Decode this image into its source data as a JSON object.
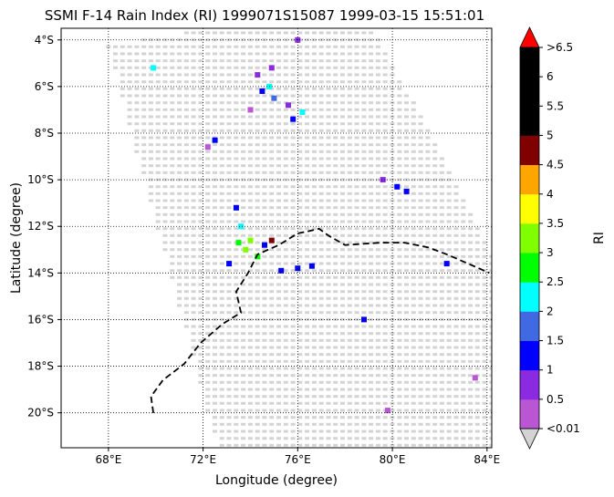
{
  "chart_data": {
    "type": "heatmap",
    "title": "SSMI F-14 Rain Index (RI) 1999071S15087 1999-03-15 15:51:01",
    "xlabel": "Longitude (degree)",
    "ylabel": "Latitude (degree)",
    "xlim": [
      66,
      84.2
    ],
    "ylim": [
      -21.5,
      -3.5
    ],
    "grid": true,
    "x_ticks": [
      {
        "value": 68,
        "label": "68°E"
      },
      {
        "value": 72,
        "label": "72°E"
      },
      {
        "value": 76,
        "label": "76°E"
      },
      {
        "value": 80,
        "label": "80°E"
      },
      {
        "value": 84,
        "label": "84°E"
      }
    ],
    "y_ticks": [
      {
        "value": -4,
        "label": "4°S"
      },
      {
        "value": -6,
        "label": "6°S"
      },
      {
        "value": -8,
        "label": "8°S"
      },
      {
        "value": -10,
        "label": "10°S"
      },
      {
        "value": -12,
        "label": "12°S"
      },
      {
        "value": -14,
        "label": "14°S"
      },
      {
        "value": -16,
        "label": "16°S"
      },
      {
        "value": -18,
        "label": "18°S"
      },
      {
        "value": -20,
        "label": "20°S"
      }
    ],
    "colorbar": {
      "label": "RI",
      "tick_labels": [
        "<0.01",
        "0.5",
        "1",
        "1.5",
        "2",
        "2.5",
        "3",
        "3.5",
        "4",
        "4.5",
        "5",
        "5.5",
        "6",
        ">6.5"
      ],
      "colors": [
        "#ba55d3",
        "#8a2be2",
        "#0000ff",
        "#4169e1",
        "#00ffff",
        "#00ff00",
        "#7fff00",
        "#ffff00",
        "#ffa500",
        "#800000",
        "#000000",
        "#000000",
        "#000000"
      ],
      "under_color": "#d3d3d3",
      "over_color": "#ff0000"
    },
    "coastline": [
      [
        69.9,
        -20.0
      ],
      [
        69.8,
        -19.3
      ],
      [
        70.3,
        -18.6
      ],
      [
        71.2,
        -17.9
      ],
      [
        71.9,
        -17.0
      ],
      [
        72.8,
        -16.2
      ],
      [
        73.6,
        -15.7
      ],
      [
        73.4,
        -14.8
      ],
      [
        73.9,
        -14.0
      ],
      [
        74.3,
        -13.2
      ],
      [
        75.2,
        -12.8
      ],
      [
        76.0,
        -12.3
      ],
      [
        76.5,
        -12.2
      ],
      [
        76.9,
        -12.1
      ],
      [
        77.3,
        -12.4
      ],
      [
        78.0,
        -12.8
      ],
      [
        79.5,
        -12.7
      ],
      [
        80.5,
        -12.7
      ],
      [
        81.5,
        -12.9
      ],
      [
        82.3,
        -13.2
      ],
      [
        83.2,
        -13.6
      ],
      [
        84.1,
        -14.0
      ]
    ],
    "swath": {
      "lon_range": [
        67.1,
        84.2
      ],
      "lat_range": [
        -21.5,
        -3.4
      ],
      "grid_step_lon": 0.3,
      "grid_step_lat": 0.3,
      "no_rain_value": 0.0
    },
    "rain_cells": [
      {
        "lon": 74.5,
        "lat": -6.2,
        "ri": 1.2
      },
      {
        "lon": 74.8,
        "lat": -6.0,
        "ri": 2.2
      },
      {
        "lon": 75.0,
        "lat": -6.5,
        "ri": 1.8
      },
      {
        "lon": 74.3,
        "lat": -5.5,
        "ri": 0.7
      },
      {
        "lon": 74.9,
        "lat": -5.2,
        "ri": 0.6
      },
      {
        "lon": 75.6,
        "lat": -6.8,
        "ri": 0.6
      },
      {
        "lon": 76.2,
        "lat": -7.1,
        "ri": 2.2
      },
      {
        "lon": 75.8,
        "lat": -7.4,
        "ri": 1.2
      },
      {
        "lon": 74.0,
        "lat": -7.0,
        "ri": 0.3
      },
      {
        "lon": 76.0,
        "lat": -4.0,
        "ri": 0.6
      },
      {
        "lon": 72.5,
        "lat": -8.3,
        "ri": 1.2
      },
      {
        "lon": 72.2,
        "lat": -8.6,
        "ri": 0.3
      },
      {
        "lon": 69.9,
        "lat": -5.2,
        "ri": 2.2
      },
      {
        "lon": 73.4,
        "lat": -11.2,
        "ri": 1.2
      },
      {
        "lon": 73.6,
        "lat": -12.0,
        "ri": 2.2
      },
      {
        "lon": 73.5,
        "lat": -12.7,
        "ri": 2.7
      },
      {
        "lon": 73.8,
        "lat": -13.0,
        "ri": 3.2
      },
      {
        "lon": 74.0,
        "lat": -12.6,
        "ri": 3.1
      },
      {
        "lon": 74.3,
        "lat": -13.3,
        "ri": 2.6
      },
      {
        "lon": 74.6,
        "lat": -12.8,
        "ri": 1.3
      },
      {
        "lon": 73.1,
        "lat": -13.6,
        "ri": 1.2
      },
      {
        "lon": 76.0,
        "lat": -13.8,
        "ri": 1.2
      },
      {
        "lon": 76.6,
        "lat": -13.7,
        "ri": 1.4
      },
      {
        "lon": 75.3,
        "lat": -13.9,
        "ri": 1.0
      },
      {
        "lon": 80.2,
        "lat": -10.3,
        "ri": 1.3
      },
      {
        "lon": 80.6,
        "lat": -10.5,
        "ri": 1.2
      },
      {
        "lon": 79.6,
        "lat": -10.0,
        "ri": 0.7
      },
      {
        "lon": 82.3,
        "lat": -13.6,
        "ri": 1.2
      },
      {
        "lon": 78.8,
        "lat": -16.0,
        "ri": 1.2
      },
      {
        "lon": 74.9,
        "lat": -12.6,
        "ri": 4.8
      },
      {
        "lon": 79.8,
        "lat": -19.9,
        "ri": 0.3
      },
      {
        "lon": 83.5,
        "lat": -18.5,
        "ri": 0.3
      }
    ]
  }
}
